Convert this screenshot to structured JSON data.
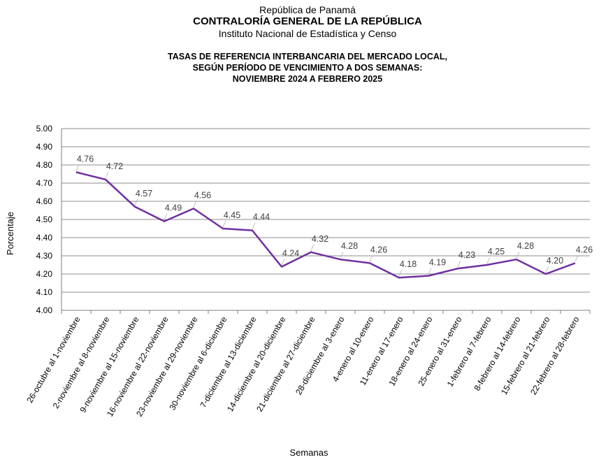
{
  "header": {
    "line1": "República de Panamá",
    "line2": "CONTRALORÍA GENERAL DE LA REPÚBLICA",
    "line3": "Instituto Nacional de Estadística y Censo"
  },
  "chart_data": {
    "type": "line",
    "title": [
      "TASAS DE REFERENCIA INTERBANCARIA  DEL MERCADO LOCAL,",
      "SEGÚN PERÍODO DE VENCIMIENTO  A DOS SEMANAS:",
      "NOVIEMBRE  2024 A FEBRERO 2025"
    ],
    "xlabel": "Semanas",
    "ylabel": "Porcentaje",
    "ylim": [
      4.0,
      5.0
    ],
    "ytick_step": 0.1,
    "yticks": [
      "4.00",
      "4.10",
      "4.20",
      "4.30",
      "4.40",
      "4.50",
      "4.60",
      "4.70",
      "4.80",
      "4.90",
      "5.00"
    ],
    "grid": true,
    "line_color": "#7030A0",
    "categories": [
      "26-octubre al 1-noviembre",
      "2-noviembre al 8-noviembre",
      "9-noviembre al 15-noviembre",
      "16-noviembre al 22-noviembre",
      "23-noviembre al 29-noviembre",
      "30-noviembre al 6-diciembre",
      "7-diciembre al 13-diciembre",
      "14-diciembre al 20-diciembre",
      "21-diciembre al 27-diciembre",
      "28-diciembre al 3-enero",
      "4-enero al 10-enero",
      "11-enero al 17-enero",
      "18-enero al 24-enero",
      "25-enero al 31-enero",
      "1-febrero al 7-febrero",
      "8-febrero al 14-febrero",
      "15-febrero al 21-febrero",
      "22-febrero al 28-febrero"
    ],
    "values": [
      4.76,
      4.72,
      4.57,
      4.49,
      4.56,
      4.45,
      4.44,
      4.24,
      4.32,
      4.28,
      4.26,
      4.18,
      4.19,
      4.23,
      4.25,
      4.28,
      4.2,
      4.26
    ],
    "data_labels": [
      "4.76",
      "4.72",
      "4.57",
      "4.49",
      "4.56",
      "4.45",
      "4.44",
      "4.24",
      "4.32",
      "4.28",
      "4.26",
      "4.18",
      "4.19",
      "4.23",
      "4.25",
      "4.28",
      "4.20",
      "4.26"
    ]
  }
}
